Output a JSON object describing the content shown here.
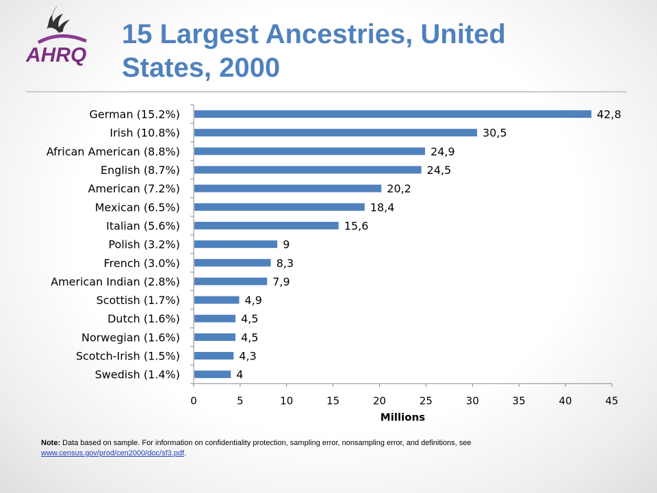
{
  "header": {
    "title": "15 Largest Ancestries, United States, 2000",
    "logo_text": "AHRQ"
  },
  "note": {
    "label": "Note:",
    "text": "Data based on sample. For information on confidentiality protection, sampling error, nonsampling error, and definitions, see",
    "link": "www.census.gov/prod/cen2000/doc/sf3.pdf",
    "after": "."
  },
  "chart_data": {
    "type": "bar",
    "orientation": "horizontal",
    "title": "",
    "xlabel": "Millions",
    "ylabel": "",
    "xlim": [
      0,
      45
    ],
    "xticks": [
      0,
      5,
      10,
      15,
      20,
      25,
      30,
      35,
      40,
      45
    ],
    "grid": false,
    "legend": "none",
    "bar_color": "#4f81bd",
    "categories": [
      "German (15.2%)",
      "Irish (10.8%)",
      "African American (8.8%)",
      "English (8.7%)",
      "American (7.2%)",
      "Mexican (6.5%)",
      "Italian (5.6%)",
      "Polish (3.2%)",
      "French (3.0%)",
      "American Indian (2.8%)",
      "Scottish (1.7%)",
      "Dutch (1.6%)",
      "Norwegian (1.6%)",
      "Scotch-Irish (1.5%)",
      "Swedish (1.4%)"
    ],
    "values": [
      42.8,
      30.5,
      24.9,
      24.5,
      20.2,
      18.4,
      15.6,
      9,
      8.3,
      7.9,
      4.9,
      4.5,
      4.5,
      4.3,
      4
    ],
    "value_labels": [
      "42,8",
      "30,5",
      "24,9",
      "24,5",
      "20,2",
      "18,4",
      "15,6",
      "9",
      "8,3",
      "7,9",
      "4,9",
      "4,5",
      "4,5",
      "4,3",
      "4"
    ]
  }
}
